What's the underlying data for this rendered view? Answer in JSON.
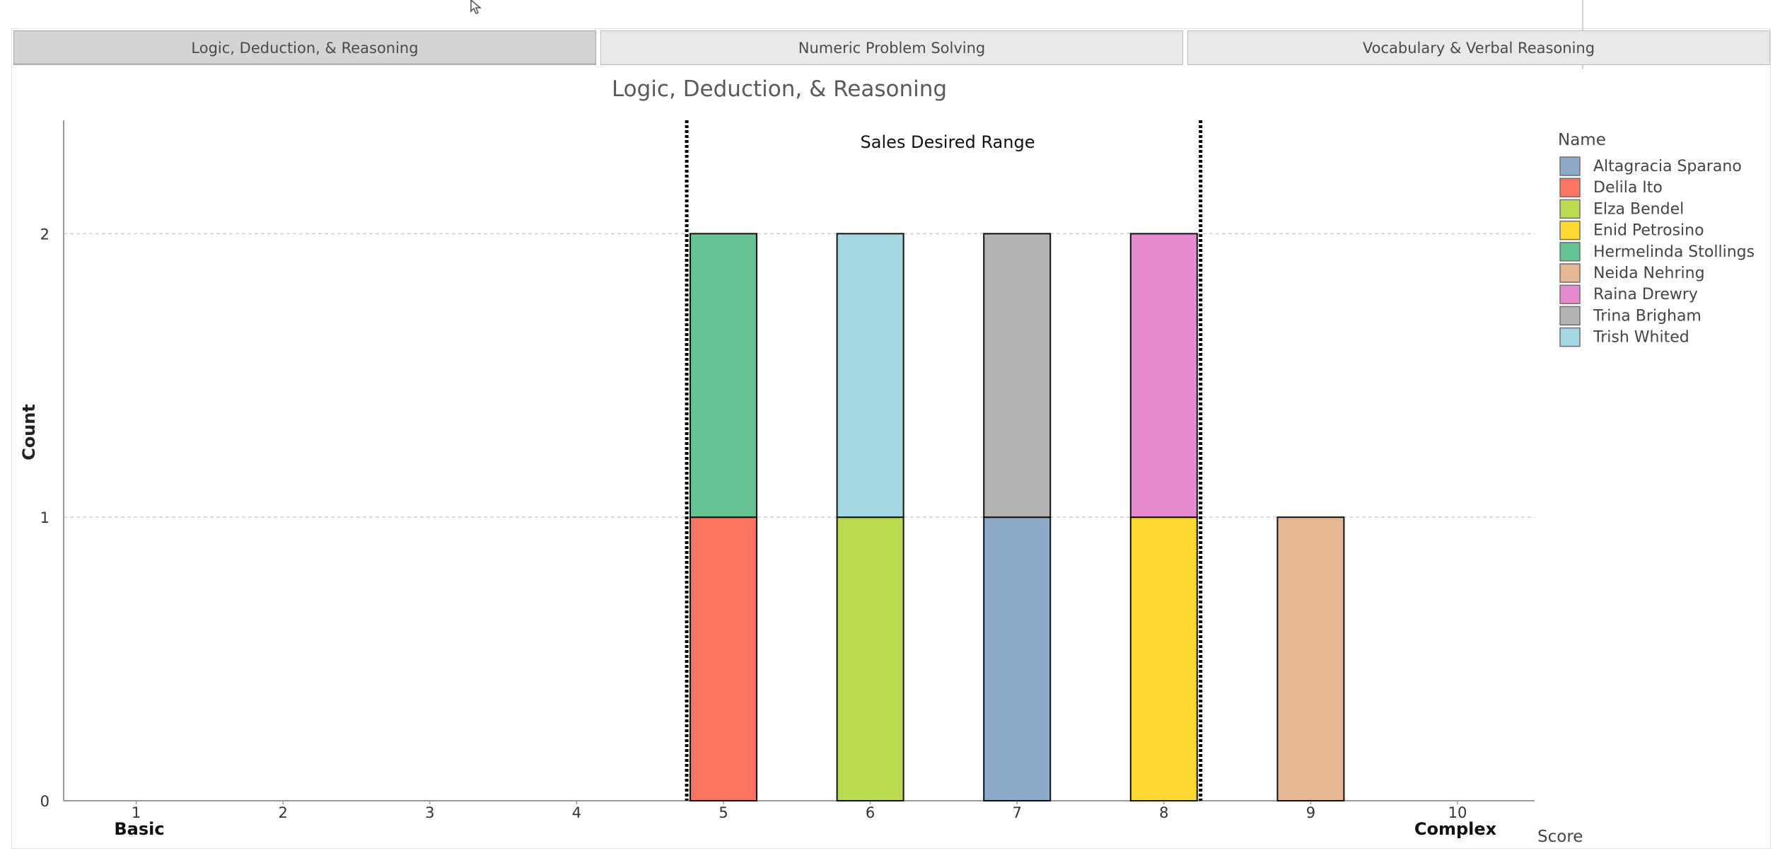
{
  "tabs": [
    {
      "label": "Logic, Deduction, & Reasoning",
      "active": true
    },
    {
      "label": "Numeric Problem Solving",
      "active": false
    },
    {
      "label": "Vocabulary & Verbal Reasoning",
      "active": false
    }
  ],
  "chart_data": {
    "type": "bar",
    "stacked": true,
    "title": "Logic, Deduction, & Reasoning",
    "xlabel": "Score",
    "ylabel": "Count",
    "categories": [
      "1",
      "2",
      "3",
      "4",
      "5",
      "6",
      "7",
      "8",
      "9",
      "10"
    ],
    "x_end_labels": {
      "low": "Basic",
      "high": "Complex"
    },
    "yticks": [
      0,
      1,
      2
    ],
    "ylim": [
      0,
      2.4
    ],
    "grid": true,
    "legend_title": "Name",
    "legend_position": "right",
    "annotation": {
      "label": "Sales Desired Range",
      "x_range": [
        4.75,
        8.25
      ],
      "style": "dotted"
    },
    "series": [
      {
        "name": "Altagracia Sparano",
        "color": "#8EAACB",
        "values": [
          0,
          0,
          0,
          0,
          0,
          0,
          1,
          0,
          0,
          0
        ]
      },
      {
        "name": "Delila Ito",
        "color": "#FC7562",
        "values": [
          0,
          0,
          0,
          0,
          1,
          0,
          0,
          0,
          0,
          0
        ]
      },
      {
        "name": "Elza Bendel",
        "color": "#BCD952",
        "values": [
          0,
          0,
          0,
          0,
          0,
          1,
          0,
          0,
          0,
          0
        ]
      },
      {
        "name": "Enid Petrosino",
        "color": "#FFD92F",
        "values": [
          0,
          0,
          0,
          0,
          0,
          0,
          0,
          1,
          0,
          0
        ]
      },
      {
        "name": "Hermelinda Stollings",
        "color": "#66C294",
        "values": [
          0,
          0,
          0,
          0,
          1,
          0,
          0,
          0,
          0,
          0
        ]
      },
      {
        "name": "Neida Nehring",
        "color": "#E5B594",
        "values": [
          0,
          0,
          0,
          0,
          0,
          0,
          0,
          0,
          1,
          0
        ]
      },
      {
        "name": "Raina Drewry",
        "color": "#E78AD0",
        "values": [
          0,
          0,
          0,
          0,
          0,
          0,
          0,
          1,
          0,
          0
        ]
      },
      {
        "name": "Trina Brigham",
        "color": "#B3B3B3",
        "values": [
          0,
          0,
          0,
          0,
          0,
          0,
          1,
          0,
          0,
          0
        ]
      },
      {
        "name": "Trish Whited",
        "color": "#A6D8E3",
        "values": [
          0,
          0,
          0,
          0,
          0,
          1,
          0,
          0,
          0,
          0
        ]
      }
    ],
    "stack_order": {
      "5": [
        "Delila Ito",
        "Hermelinda Stollings"
      ],
      "6": [
        "Elza Bendel",
        "Trish Whited"
      ],
      "7": [
        "Altagracia Sparano",
        "Trina Brigham"
      ],
      "8": [
        "Enid Petrosino",
        "Raina Drewry"
      ],
      "9": [
        "Neida Nehring"
      ]
    }
  }
}
